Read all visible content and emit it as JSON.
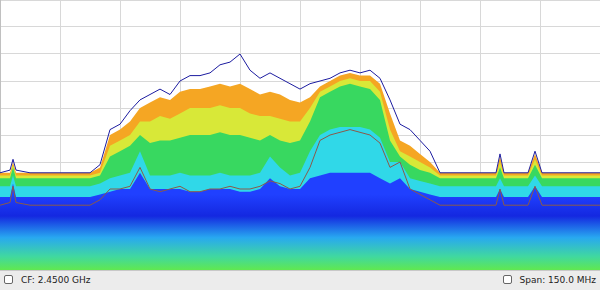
{
  "chart_data": {
    "type": "line",
    "annotations": [
      "CF: 2.4500 GHz",
      "Span: 150.0 MHz"
    ],
    "x": [
      2375,
      2377.5,
      2378.25,
      2379,
      2382.5,
      2387.5,
      2392.5,
      2397.5,
      2400,
      2402.5,
      2405,
      2407.5,
      2410,
      2412.5,
      2415,
      2417.5,
      2420,
      2422.5,
      2425,
      2427.5,
      2430,
      2432.5,
      2435,
      2437.5,
      2440,
      2442.5,
      2445,
      2447.5,
      2450,
      2452.5,
      2455,
      2457.5,
      2460,
      2462.5,
      2465,
      2467.5,
      2470,
      2472.5,
      2475,
      2477.5,
      2480,
      2482.5,
      2485,
      2490,
      2495,
      2499,
      2500,
      2501,
      2507,
      2508.75,
      2510.5,
      2517.5,
      2525
    ],
    "series": [
      {
        "type": "line",
        "color": "#1c1ca0",
        "values": [
          -74,
          -73,
          -69,
          -73,
          -74,
          -74,
          -74,
          -74,
          -71,
          -58,
          -56,
          -51,
          -47,
          -45,
          -43,
          -45,
          -40,
          -38,
          -38,
          -37,
          -34,
          -33,
          -30,
          -36,
          -39,
          -37,
          -39,
          -41,
          -43,
          -41,
          -40,
          -39,
          -37,
          -36,
          -37,
          -36,
          -39,
          -47,
          -56,
          -58,
          -62,
          -66,
          -74,
          -74,
          -74,
          -74,
          -67,
          -74,
          -74,
          -66,
          -74,
          -74,
          -74
        ]
      },
      {
        "type": "line",
        "color": "#8a5a4a",
        "values": [
          -86,
          -85,
          -79,
          -85,
          -86,
          -86,
          -86,
          -86,
          -84,
          -80,
          -80,
          -79,
          -72,
          -80,
          -81,
          -80,
          -79,
          -81,
          -81,
          -80,
          -80,
          -79,
          -80,
          -80,
          -79,
          -77,
          -78,
          -80,
          -79,
          -72,
          -62,
          -60,
          -59,
          -58,
          -59,
          -60,
          -63,
          -72,
          -70,
          -80,
          -82,
          -84,
          -86,
          -86,
          -86,
          -86,
          -80,
          -86,
          -86,
          -79,
          -86,
          -86,
          -86
        ]
      },
      {
        "type": "area",
        "color": "#2040ff",
        "values": [
          -83,
          -83,
          -78,
          -83,
          -83,
          -83,
          -83,
          -83,
          -82,
          -81,
          -80,
          -80,
          -74,
          -80,
          -80,
          -80,
          -80,
          -81,
          -81,
          -80,
          -80,
          -80,
          -81,
          -81,
          -80,
          -76,
          -79,
          -80,
          -80,
          -76,
          -75,
          -74,
          -74,
          -74,
          -74,
          -74,
          -76,
          -78,
          -76,
          -80,
          -81,
          -82,
          -83,
          -83,
          -83,
          -83,
          -80,
          -83,
          -83,
          -79,
          -83,
          -83,
          -83
        ]
      },
      {
        "type": "area",
        "color": "#30d8e8",
        "values": [
          -79,
          -79,
          -75,
          -79,
          -79,
          -79,
          -79,
          -79,
          -78,
          -76,
          -75,
          -74,
          -66,
          -75,
          -75,
          -75,
          -74,
          -75,
          -75,
          -75,
          -74,
          -75,
          -75,
          -75,
          -74,
          -68,
          -72,
          -75,
          -74,
          -66,
          -60,
          -58,
          -57,
          -57,
          -57,
          -58,
          -61,
          -70,
          -70,
          -76,
          -77,
          -78,
          -79,
          -79,
          -79,
          -79,
          -76,
          -79,
          -79,
          -75,
          -79,
          -79,
          -79
        ]
      },
      {
        "type": "area",
        "color": "#38d860",
        "values": [
          -76,
          -76,
          -72,
          -76,
          -76,
          -76,
          -76,
          -76,
          -75,
          -68,
          -66,
          -64,
          -60,
          -63,
          -62,
          -62,
          -61,
          -60,
          -60,
          -60,
          -59,
          -60,
          -60,
          -61,
          -62,
          -60,
          -62,
          -63,
          -62,
          -55,
          -46,
          -44,
          -42,
          -41,
          -42,
          -43,
          -47,
          -62,
          -68,
          -71,
          -73,
          -74,
          -76,
          -76,
          -76,
          -76,
          -72,
          -76,
          -76,
          -71,
          -76,
          -76,
          -76
        ]
      },
      {
        "type": "area",
        "color": "#d8e838",
        "values": [
          -75,
          -75,
          -71,
          -75,
          -75,
          -75,
          -75,
          -75,
          -74,
          -64,
          -62,
          -60,
          -55,
          -55,
          -53,
          -54,
          -52,
          -50,
          -50,
          -50,
          -49,
          -50,
          -50,
          -52,
          -53,
          -53,
          -54,
          -55,
          -55,
          -50,
          -44,
          -42,
          -40,
          -39,
          -40,
          -40,
          -44,
          -58,
          -66,
          -68,
          -70,
          -72,
          -75,
          -75,
          -75,
          -75,
          -70,
          -75,
          -75,
          -69,
          -75,
          -75,
          -75
        ]
      },
      {
        "type": "area",
        "color": "#f5a623",
        "values": [
          -74,
          -74,
          -70,
          -74,
          -74,
          -74,
          -74,
          -74,
          -72,
          -60,
          -58,
          -55,
          -50,
          -48,
          -46,
          -47,
          -44,
          -43,
          -43,
          -42,
          -41,
          -42,
          -41,
          -43,
          -45,
          -44,
          -45,
          -47,
          -48,
          -46,
          -42,
          -40,
          -38,
          -37,
          -38,
          -38,
          -41,
          -52,
          -62,
          -64,
          -67,
          -70,
          -74,
          -74,
          -74,
          -74,
          -68,
          -74,
          -74,
          -67,
          -74,
          -74,
          -74
        ]
      }
    ],
    "xlim": [
      2375,
      2525
    ],
    "xticks": [
      2375,
      2390,
      2405,
      2420,
      2435,
      2450,
      2465,
      2480,
      2495,
      2510,
      2525
    ],
    "ylim": [
      -110,
      -10
    ],
    "yticks": [
      -110,
      -100,
      -90,
      -80,
      -70,
      -60,
      -50,
      -40,
      -30,
      -20,
      -10
    ],
    "grid": true,
    "tick_labels": false
  }
}
